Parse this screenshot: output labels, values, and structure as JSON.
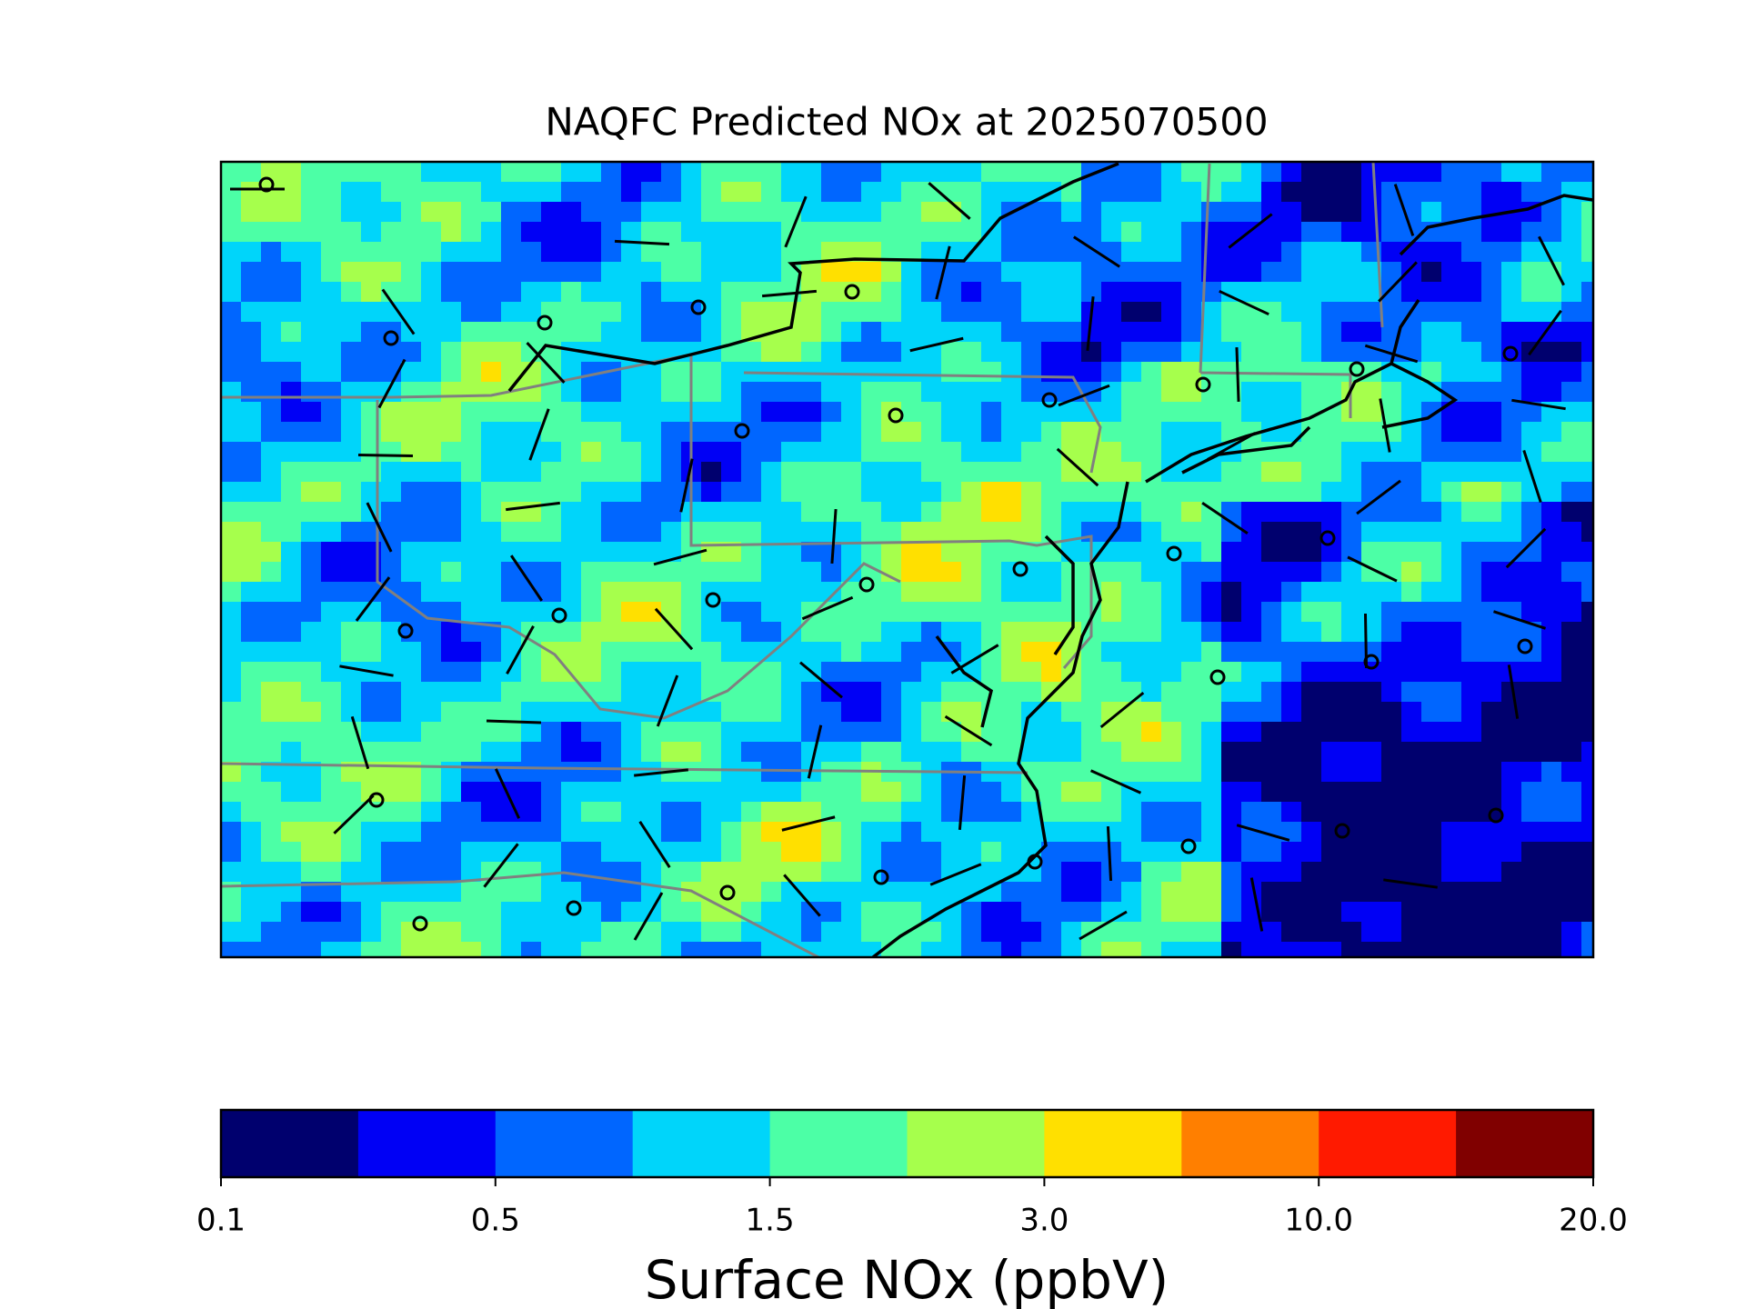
{
  "title": "NAQFC Predicted NOx at 2025070500",
  "colorbar": {
    "label": "Surface NOx (ppbV)",
    "colors": [
      "#00006e",
      "#0000f5",
      "#0066ff",
      "#00d5fa",
      "#4cffa6",
      "#a6ff4c",
      "#ffe000",
      "#ff7f00",
      "#ff1a00",
      "#800000"
    ],
    "ticks": [
      {
        "value": 0.1,
        "label": "0.1"
      },
      {
        "value": 0.5,
        "label": "0.5"
      },
      {
        "value": 1.5,
        "label": "1.5"
      },
      {
        "value": 3,
        "label": "3.0"
      },
      {
        "value": 10,
        "label": "10.0"
      },
      {
        "value": 20,
        "label": "20.0"
      }
    ]
  }
}
